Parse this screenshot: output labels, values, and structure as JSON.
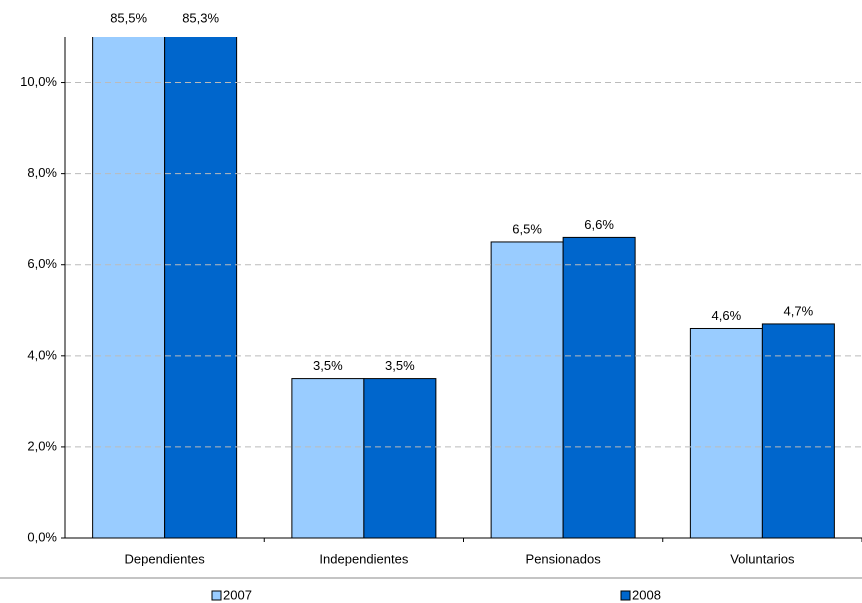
{
  "chart_data": {
    "type": "bar",
    "categories": [
      "Dependientes",
      "Independientes",
      "Pensionados",
      "Voluntarios"
    ],
    "series": [
      {
        "name": "2007",
        "color": "#99ccff",
        "values": [
          85.5,
          3.5,
          6.5,
          4.6
        ],
        "value_labels": [
          "85,5%",
          "3,5%",
          "6,5%",
          "4,6%"
        ]
      },
      {
        "name": "2008",
        "color": "#0066cc",
        "values": [
          85.3,
          3.5,
          6.6,
          4.7
        ],
        "value_labels": [
          "85,3%",
          "3,5%",
          "6,6%",
          "4,7%"
        ]
      }
    ],
    "ylim": [
      0,
      11
    ],
    "yticks": [
      {
        "value": 0,
        "label": "0,0%"
      },
      {
        "value": 2,
        "label": "2,0%"
      },
      {
        "value": 4,
        "label": "4,0%"
      },
      {
        "value": 6,
        "label": "6,0%"
      },
      {
        "value": 8,
        "label": "8,0%"
      },
      {
        "value": 10,
        "label": "10,0%"
      }
    ],
    "grid": true,
    "legend": "bottom"
  }
}
